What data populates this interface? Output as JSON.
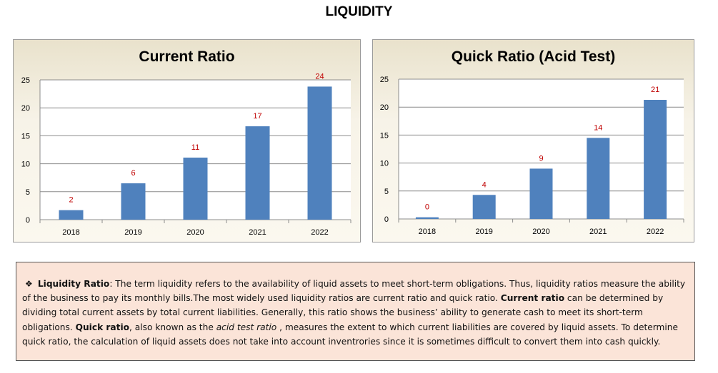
{
  "page": {
    "title": "LIQUIDITY"
  },
  "chart_data": [
    {
      "type": "bar",
      "title": "Current Ratio",
      "categories": [
        "2018",
        "2019",
        "2020",
        "2021",
        "2022"
      ],
      "values": [
        1.7,
        6.5,
        11.1,
        16.7,
        23.8
      ],
      "data_labels": [
        "2",
        "6",
        "11",
        "17",
        "24"
      ],
      "ylim": [
        0,
        25
      ],
      "yticks": [
        "0",
        "5",
        "10",
        "15",
        "20",
        "25"
      ],
      "grid": true,
      "legend": "none",
      "bar_color": "#4f81bd",
      "label_color": "#c00000"
    },
    {
      "type": "bar",
      "title": "Quick Ratio (Acid Test)",
      "categories": [
        "2018",
        "2019",
        "2020",
        "2021",
        "2022"
      ],
      "values": [
        0.3,
        4.3,
        9.0,
        14.5,
        21.3
      ],
      "data_labels": [
        "0",
        "4",
        "9",
        "14",
        "21"
      ],
      "ylim": [
        0,
        25
      ],
      "yticks": [
        "0",
        "5",
        "10",
        "15",
        "20",
        "25"
      ],
      "grid": true,
      "legend": "none",
      "bar_color": "#4f81bd",
      "label_color": "#c00000"
    }
  ],
  "info": {
    "bullet_icon": "diamond-bullet-icon",
    "term1": "Liquidity Ratio",
    "text1": ": The term liquidity refers to the availability of liquid assets to meet short-term obligations. Thus, liquidity ratios measure the ability of the business to pay its monthly bills.The most widely used liquidity ratios are current ratio and quick ratio. ",
    "term2": "Current ratio",
    "text2": " can be determined by dividing total current assets by total current liabilities. Generally, this ratio shows the business’ ability to generate cash to meet its short-term obligations.  ",
    "term3": "Quick ratio",
    "text3": ", also known as the ",
    "term4": "acid test ratio",
    "text4": " , measures the extent to which current liabilities are covered by liquid assets. To determine quick ratio, the calculation of liquid assets does not take into account inventrories since it is sometimes difficult to convert them into cash quickly."
  }
}
